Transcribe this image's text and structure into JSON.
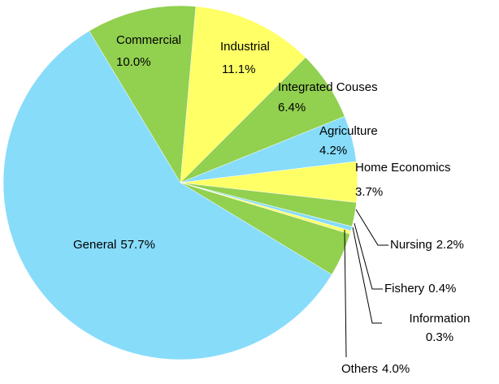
{
  "chart_data": {
    "type": "pie",
    "categories": [
      "Commercial",
      "Industrial",
      "Integrated Couses",
      "Agriculture",
      "Home Economics",
      "Nursing",
      "Fishery",
      "Information",
      "Others",
      "General"
    ],
    "values": [
      10.0,
      11.1,
      6.4,
      4.2,
      3.7,
      2.2,
      0.4,
      0.3,
      4.0,
      57.7
    ],
    "value_labels": [
      "10.0%",
      "11.1%",
      "6.4%",
      "4.2%",
      "3.7%",
      "2.2%",
      "0.4%",
      "0.3%",
      "4.0%",
      "57.7%"
    ],
    "colors": [
      "#92d050",
      "#ffff66",
      "#92d050",
      "#87dcfa",
      "#ffff66",
      "#92d050",
      "#87dcfa",
      "#ffff66",
      "#92d050",
      "#87dcfa"
    ]
  }
}
